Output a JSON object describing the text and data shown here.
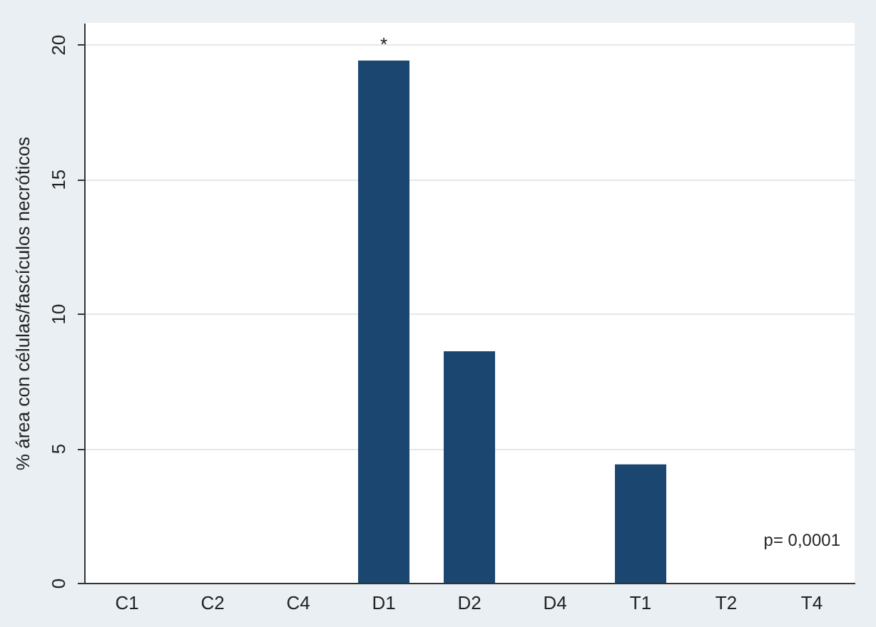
{
  "chart_data": {
    "type": "bar",
    "ylabel": "% área con células/fascículos necróticos",
    "categories": [
      "C1",
      "C2",
      "C4",
      "D1",
      "D2",
      "D4",
      "T1",
      "T2",
      "T4"
    ],
    "values": [
      0,
      0,
      0,
      19.4,
      8.6,
      0,
      4.4,
      0,
      0
    ],
    "color": "#1a4670",
    "ylim": [
      0,
      20.8
    ],
    "yticks": [
      0,
      5,
      10,
      15,
      20
    ],
    "grid": "y",
    "annotations": [
      {
        "text": "*",
        "x": "D1",
        "y": 19.4
      },
      "p= 0,0001"
    ]
  }
}
